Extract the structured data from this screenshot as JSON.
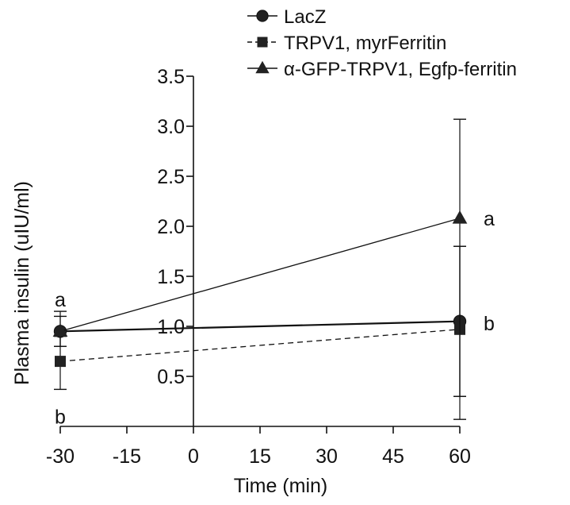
{
  "chart_data": {
    "type": "line",
    "xlabel": "Time (min)",
    "ylabel": "Plasma insulin (uIU/ml)",
    "x": [
      -30,
      60
    ],
    "xticks": [
      "-30",
      "-15",
      "0",
      "15",
      "30",
      "45",
      "60"
    ],
    "yticks": [
      "0.5",
      "1.0",
      "1.5",
      "2.0",
      "2.5",
      "3.0",
      "3.5"
    ],
    "xlim": [
      -30,
      60
    ],
    "ylim": [
      0,
      3.5
    ],
    "legend_position": "top",
    "series": [
      {
        "name": "LacZ",
        "marker": "circle",
        "line": "solid",
        "values": [
          0.95,
          1.05
        ],
        "err_low": [
          0.8,
          0.3
        ],
        "err_high": [
          1.1,
          1.8
        ]
      },
      {
        "name": "TRPV1, myrFerritin",
        "marker": "square",
        "line": "dashed",
        "values": [
          0.65,
          0.97
        ],
        "err_low": [
          0.37,
          0.3
        ],
        "err_high": [
          0.9,
          1.8
        ]
      },
      {
        "name": "α-GFP-TRPV1, Egfp-ferritin",
        "marker": "triangle",
        "line": "solid",
        "values": [
          0.95,
          2.08
        ],
        "err_low": [
          0.8,
          0.07
        ],
        "err_high": [
          1.15,
          3.07
        ]
      }
    ],
    "annotations": [
      {
        "text": "a",
        "x": -30,
        "y": 1.27
      },
      {
        "text": "b",
        "x": -30,
        "y": 0.1
      },
      {
        "text": "a",
        "x": 60,
        "y": 2.08
      },
      {
        "text": "b",
        "x": 60,
        "y": 1.03
      }
    ]
  }
}
